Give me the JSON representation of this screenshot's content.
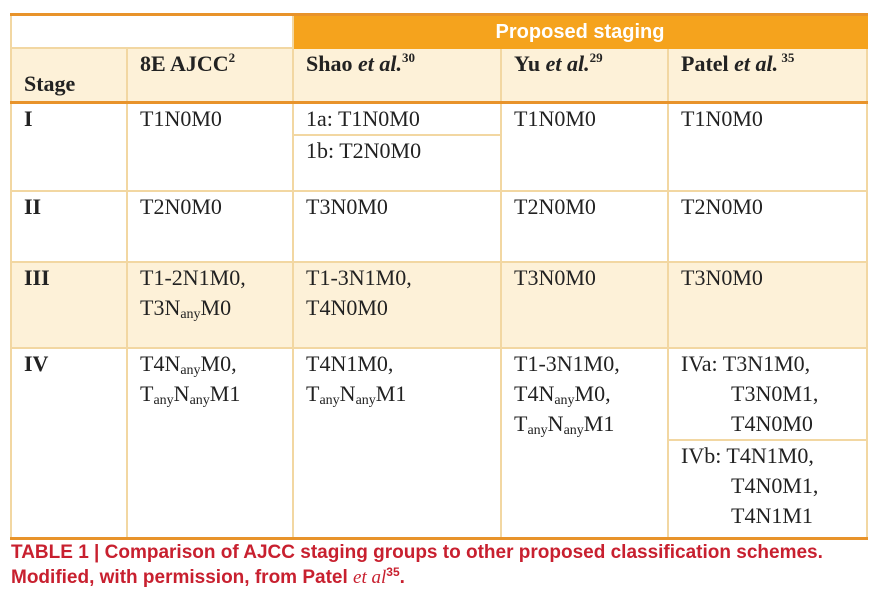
{
  "table": {
    "group_header": "Proposed staging",
    "columns": [
      [
        [
          "Stage"
        ]
      ],
      [
        [
          "8E AJCC",
          {
            "sup": "2"
          }
        ]
      ],
      [
        [
          "Shao ",
          {
            "i": "et al."
          },
          {
            "sup": "30"
          }
        ]
      ],
      [
        [
          "Yu ",
          {
            "i": "et al."
          },
          {
            "sup": "29"
          }
        ]
      ],
      [
        [
          "Patel ",
          {
            "i": "et al."
          },
          {
            "sup": " 35"
          }
        ]
      ]
    ],
    "rows": [
      [
        [
          [
            [
              "I"
            ]
          ]
        ],
        [
          [
            [
              "T1N0M0"
            ]
          ]
        ],
        [
          [
            [
              "1a: T1N0M0"
            ]
          ],
          [
            [
              "1b: T2N0M0"
            ]
          ]
        ],
        [
          [
            [
              "T1N0M0"
            ]
          ]
        ],
        [
          [
            [
              "T1N0M0"
            ]
          ]
        ]
      ],
      [
        [
          [
            [
              "II"
            ]
          ]
        ],
        [
          [
            [
              "T2N0M0"
            ]
          ]
        ],
        [
          [
            [
              "T3N0M0"
            ]
          ]
        ],
        [
          [
            [
              "T2N0M0"
            ]
          ]
        ],
        [
          [
            [
              "T2N0M0"
            ]
          ]
        ]
      ],
      [
        [
          [
            [
              "III"
            ]
          ]
        ],
        [
          [
            [
              "T1-2N1M0,"
            ],
            [
              "T3N",
              {
                "sub": "any"
              },
              "M0"
            ]
          ]
        ],
        [
          [
            [
              "T1-3N1M0,"
            ],
            [
              "T4N0M0"
            ]
          ]
        ],
        [
          [
            [
              "T3N0M0"
            ]
          ]
        ],
        [
          [
            [
              "T3N0M0"
            ]
          ]
        ]
      ],
      [
        [
          [
            [
              "IV"
            ]
          ]
        ],
        [
          [
            [
              "T4N",
              {
                "sub": "any"
              },
              "M0,"
            ],
            [
              "T",
              {
                "sub": "any"
              },
              "N",
              {
                "sub": "any"
              },
              "M1"
            ]
          ]
        ],
        [
          [
            [
              "T4N1M0,"
            ],
            [
              "T",
              {
                "sub": "any"
              },
              "N",
              {
                "sub": "any"
              },
              "M1"
            ]
          ]
        ],
        [
          [
            [
              "T1-3N1M0,"
            ],
            [
              "T4N",
              {
                "sub": "any"
              },
              "M0,"
            ],
            [
              "T",
              {
                "sub": "any"
              },
              "N",
              {
                "sub": "any"
              },
              "M1"
            ]
          ]
        ],
        [
          [
            [
              "IVa: T3N1M0,"
            ],
            [
              "T3N0M1,"
            ],
            [
              "T4N0M0"
            ]
          ],
          [
            [
              "IVb: T4N1M0,"
            ],
            [
              "T4N0M1,"
            ],
            [
              "T4N1M1"
            ]
          ]
        ]
      ]
    ]
  },
  "caption": {
    "label": "TABLE 1 | Comparison of AJCC staging groups to other proposed classification schemes. Modified, with permission, from Patel ",
    "italic": "et al",
    "sup": "35",
    "end": "."
  }
}
